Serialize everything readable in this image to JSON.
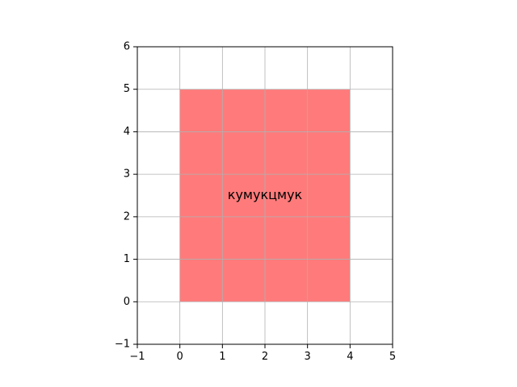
{
  "chart_data": {
    "type": "area",
    "title": "",
    "xlabel": "",
    "ylabel": "",
    "xlim": [
      -1,
      5
    ],
    "ylim": [
      -1,
      6
    ],
    "xticks": [
      -1,
      0,
      1,
      2,
      3,
      4,
      5
    ],
    "yticks": [
      -1,
      0,
      1,
      2,
      3,
      4,
      5,
      6
    ],
    "xtick_labels": [
      "−1",
      "0",
      "1",
      "2",
      "3",
      "4",
      "5"
    ],
    "ytick_labels": [
      "−1",
      "0",
      "1",
      "2",
      "3",
      "4",
      "5",
      "6"
    ],
    "grid": true,
    "rectangle": {
      "x0": 0,
      "y0": 0,
      "x1": 4,
      "y1": 5,
      "color": "#ff7b7b"
    },
    "annotation": {
      "text": "кумукцмук",
      "x": 2,
      "y": 2.5
    }
  }
}
